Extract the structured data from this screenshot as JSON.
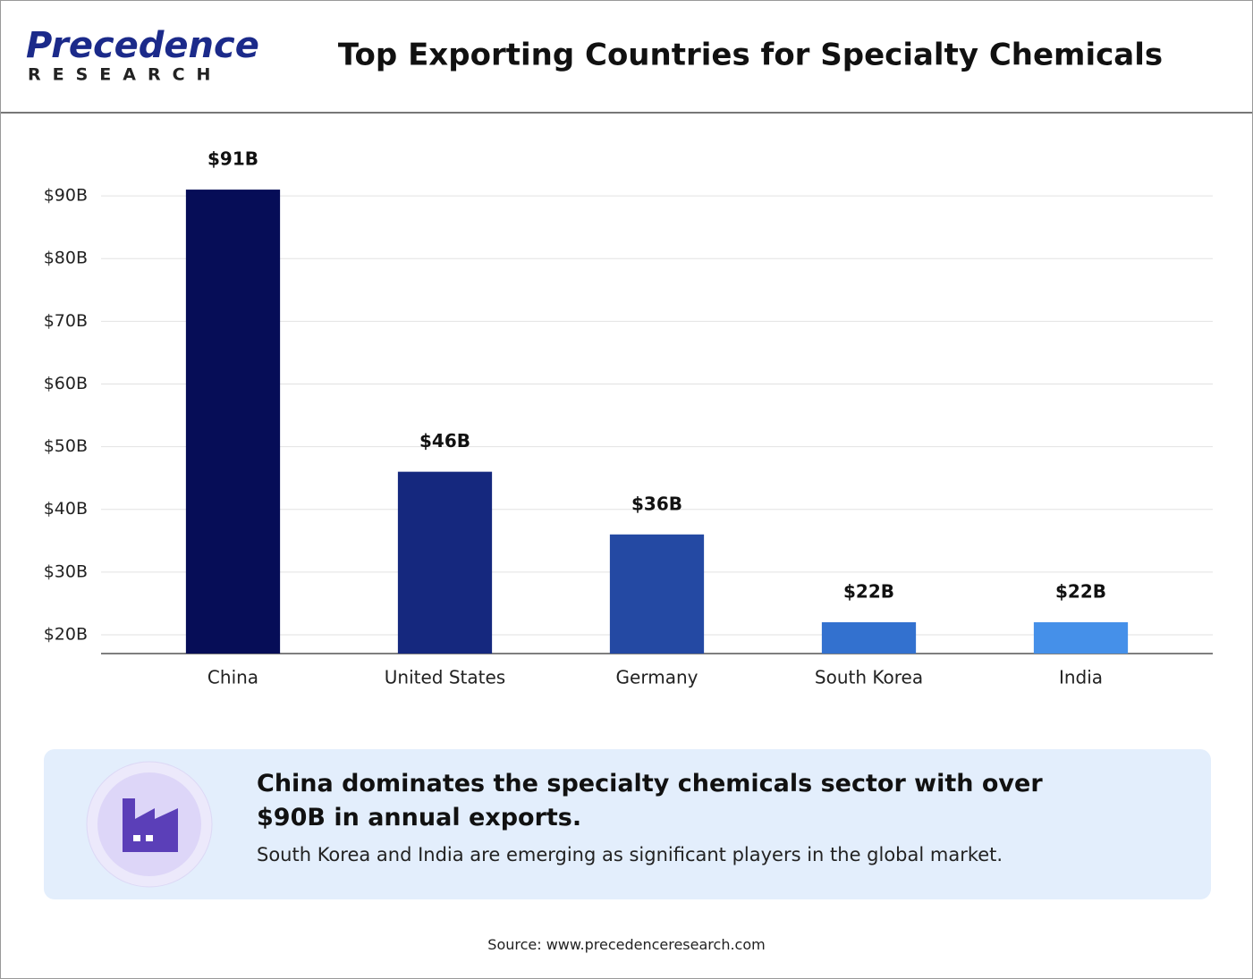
{
  "header": {
    "logo_main": "Precedence",
    "logo_sub": "RESEARCH"
  },
  "chart_data": {
    "type": "bar",
    "title": "Top Exporting Countries for Specialty Chemicals",
    "categories": [
      "China",
      "United States",
      "Germany",
      "South Korea",
      "India"
    ],
    "values": [
      91,
      46,
      36,
      22,
      22
    ],
    "value_labels": [
      "$91B",
      "$46B",
      "$36B",
      "$22B",
      "$22B"
    ],
    "colors": [
      "#060d57",
      "#15287e",
      "#2449a3",
      "#3371cf",
      "#4590e9"
    ],
    "ylim": [
      17,
      97
    ],
    "yticks": [
      {
        "value": 20,
        "label": "$20B"
      },
      {
        "value": 30,
        "label": "$30B"
      },
      {
        "value": 40,
        "label": "$40B"
      },
      {
        "value": 50,
        "label": "$50B"
      },
      {
        "value": 60,
        "label": "$60B"
      },
      {
        "value": 70,
        "label": "$70B"
      },
      {
        "value": 80,
        "label": "$80B"
      },
      {
        "value": 90,
        "label": "$90B"
      }
    ],
    "grid": true
  },
  "insight": {
    "headline": "China dominates the specialty chemicals sector with over $90B in annual exports.",
    "detail": "South Korea and India are emerging as significant players in the global market."
  },
  "source": "Source: www.precedenceresearch.com"
}
